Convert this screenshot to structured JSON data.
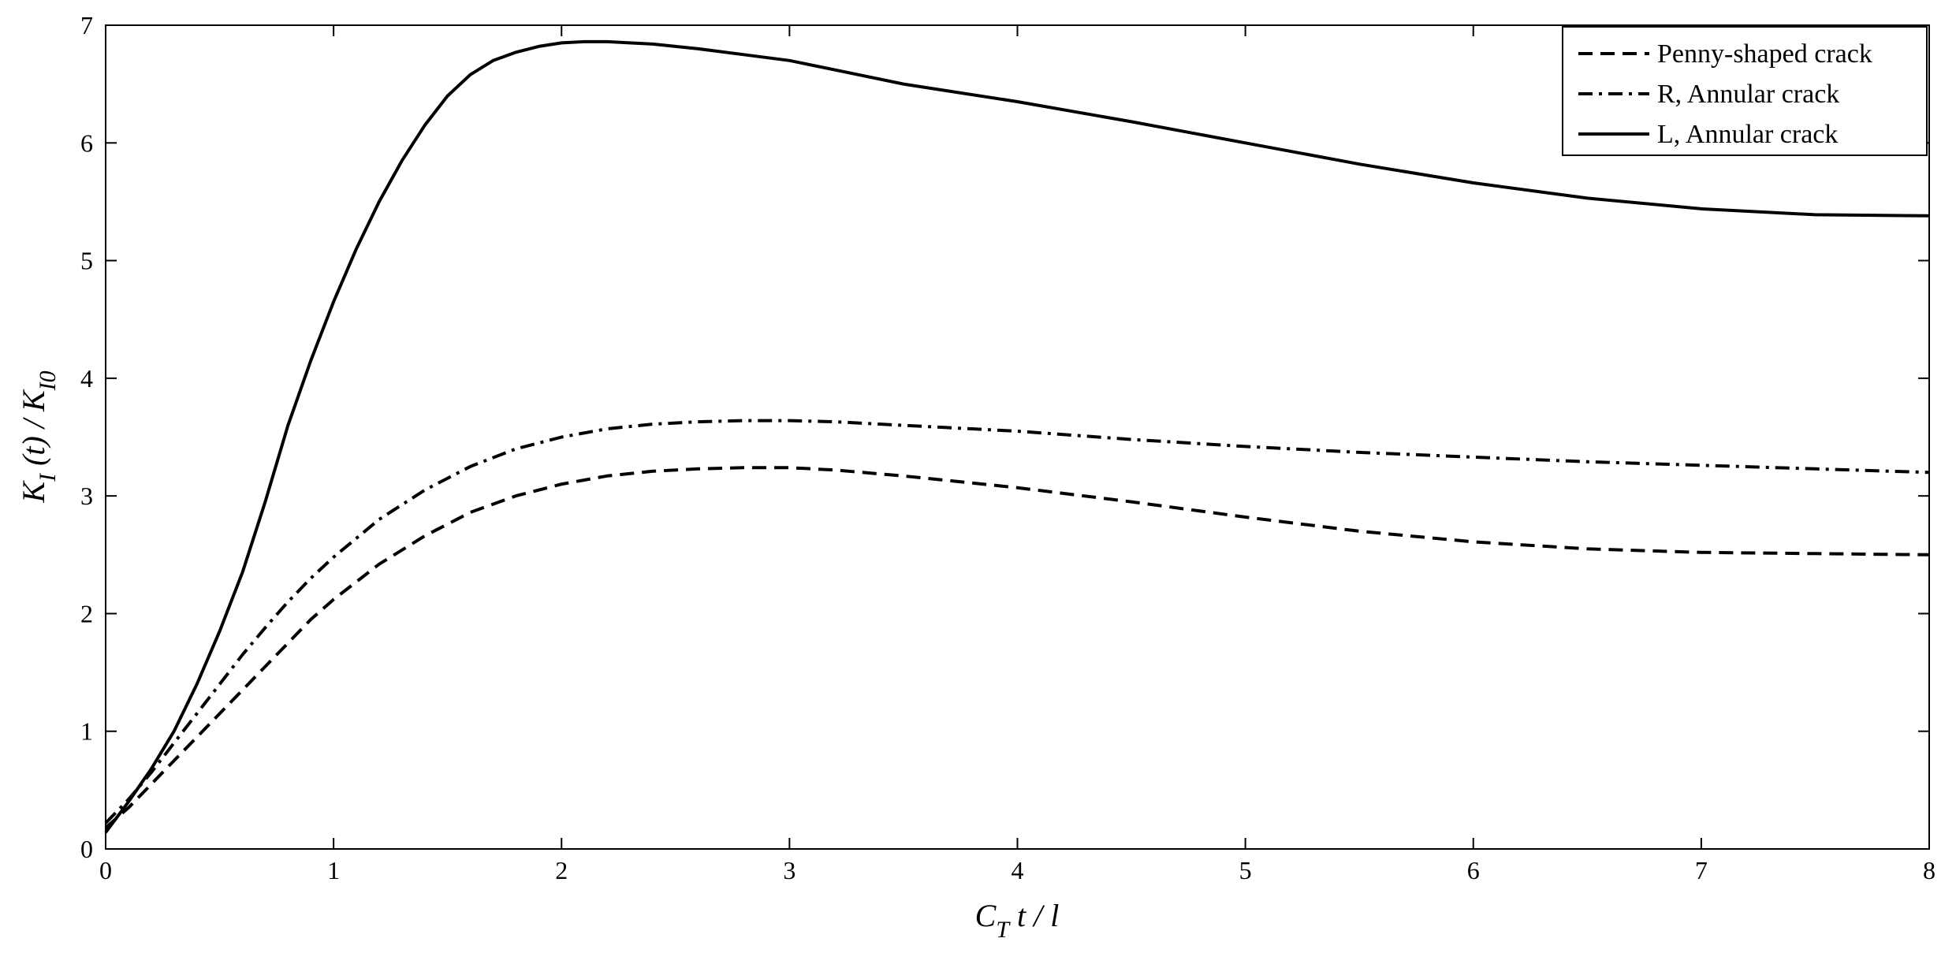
{
  "chart_data": {
    "type": "line",
    "xlabel": {
      "main": "C",
      "sub": "T",
      "rest": " t / l"
    },
    "ylabel": {
      "k1": "K",
      "k1_sub": "I",
      "mid": " (t) / K",
      "k2_sub": "I0"
    },
    "xlim": [
      0,
      8
    ],
    "ylim": [
      0,
      7
    ],
    "xticks": [
      "0",
      "1",
      "2",
      "3",
      "4",
      "5",
      "6",
      "7",
      "8"
    ],
    "yticks": [
      "0",
      "1",
      "2",
      "3",
      "4",
      "5",
      "6",
      "7"
    ],
    "grid": false,
    "legend_position": "top-right",
    "series": [
      {
        "name": "Penny-shaped crack",
        "style": "dashed",
        "color": "#000000",
        "x": [
          0,
          0.1,
          0.2,
          0.3,
          0.4,
          0.5,
          0.6,
          0.7,
          0.8,
          0.9,
          1.0,
          1.2,
          1.4,
          1.6,
          1.8,
          2.0,
          2.2,
          2.4,
          2.6,
          2.8,
          3.0,
          3.2,
          3.5,
          4.0,
          4.5,
          5.0,
          5.5,
          6.0,
          6.5,
          7.0,
          7.5,
          8.0
        ],
        "y": [
          0.18,
          0.35,
          0.55,
          0.75,
          0.95,
          1.15,
          1.35,
          1.55,
          1.75,
          1.95,
          2.12,
          2.42,
          2.66,
          2.86,
          3.0,
          3.1,
          3.17,
          3.21,
          3.23,
          3.24,
          3.24,
          3.22,
          3.17,
          3.07,
          2.95,
          2.82,
          2.7,
          2.61,
          2.55,
          2.52,
          2.51,
          2.5
        ]
      },
      {
        "name": "R, Annular crack",
        "style": "dashdot",
        "color": "#000000",
        "x": [
          0,
          0.1,
          0.2,
          0.3,
          0.4,
          0.5,
          0.6,
          0.7,
          0.8,
          0.9,
          1.0,
          1.2,
          1.4,
          1.6,
          1.8,
          2.0,
          2.2,
          2.4,
          2.6,
          2.8,
          3.0,
          3.2,
          3.5,
          4.0,
          4.5,
          5.0,
          5.5,
          6.0,
          6.5,
          7.0,
          7.5,
          8.0
        ],
        "y": [
          0.22,
          0.42,
          0.65,
          0.9,
          1.15,
          1.4,
          1.65,
          1.88,
          2.1,
          2.3,
          2.48,
          2.8,
          3.05,
          3.25,
          3.4,
          3.5,
          3.57,
          3.61,
          3.63,
          3.64,
          3.64,
          3.63,
          3.6,
          3.55,
          3.48,
          3.42,
          3.37,
          3.33,
          3.29,
          3.26,
          3.23,
          3.2
        ]
      },
      {
        "name": "L, Annular crack",
        "style": "solid",
        "color": "#000000",
        "x": [
          0,
          0.1,
          0.2,
          0.3,
          0.4,
          0.5,
          0.6,
          0.7,
          0.8,
          0.9,
          1.0,
          1.1,
          1.2,
          1.3,
          1.4,
          1.5,
          1.6,
          1.7,
          1.8,
          1.9,
          2.0,
          2.1,
          2.2,
          2.3,
          2.4,
          2.5,
          2.6,
          2.8,
          3.0,
          3.2,
          3.5,
          4.0,
          4.5,
          5.0,
          5.5,
          6.0,
          6.5,
          7.0,
          7.5,
          8.0
        ],
        "y": [
          0.14,
          0.4,
          0.68,
          1.0,
          1.4,
          1.85,
          2.35,
          2.95,
          3.6,
          4.15,
          4.65,
          5.1,
          5.5,
          5.85,
          6.15,
          6.4,
          6.58,
          6.7,
          6.77,
          6.82,
          6.85,
          6.86,
          6.86,
          6.85,
          6.84,
          6.82,
          6.8,
          6.75,
          6.7,
          6.62,
          6.5,
          6.35,
          6.18,
          6.0,
          5.82,
          5.66,
          5.53,
          5.44,
          5.39,
          5.38
        ]
      }
    ]
  }
}
